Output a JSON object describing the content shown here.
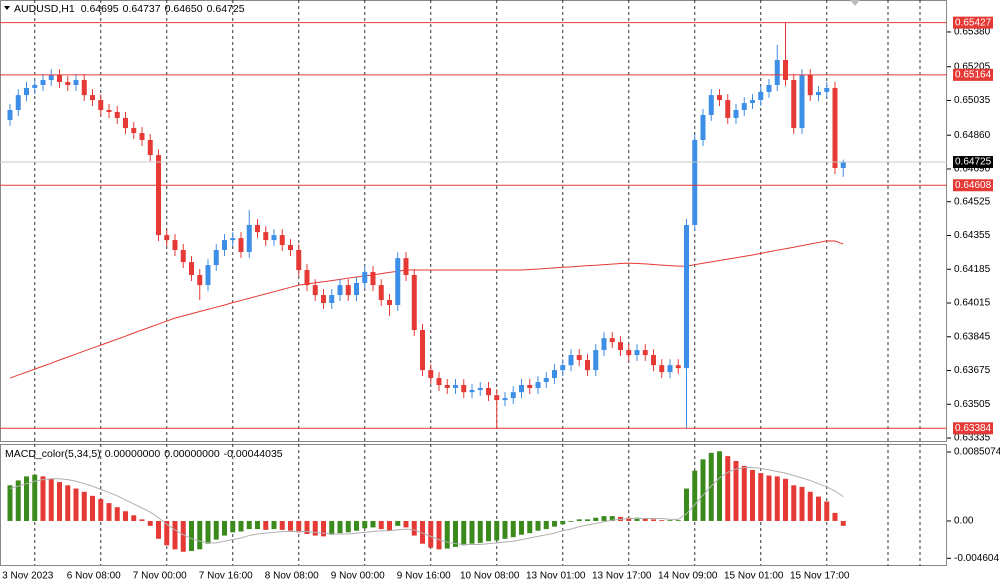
{
  "chart_data": {
    "type": "candlestick",
    "symbol": "AUDUSD,H1",
    "header_values": [
      "0.64695",
      "0.64737",
      "0.64650",
      "0.64725"
    ],
    "bull_color": "#3d8ee6",
    "bear_color": "#e53935",
    "ma_color": "#e53935",
    "level_color": "#e53935",
    "open": [
      0.64937,
      0.64987,
      0.65062,
      0.65098,
      0.65113,
      0.65138,
      0.65163,
      0.65128,
      0.65113,
      0.65138,
      0.65062,
      0.65037,
      0.64987,
      0.64977,
      0.64947,
      0.64896,
      0.64871,
      0.64836,
      0.6476,
      0.64357,
      0.64332,
      0.64282,
      0.64221,
      0.64156,
      0.64105,
      0.64206,
      0.64282,
      0.64332,
      0.64342,
      0.64272,
      0.64408,
      0.64372,
      0.64332,
      0.64357,
      0.64307,
      0.64282,
      0.64181,
      0.64105,
      0.64055,
      0.64015,
      0.64055,
      0.64105,
      0.64055,
      0.64116,
      0.64171,
      0.64105,
      0.6403,
      0.64005,
      0.64241,
      0.64156,
      0.63879,
      0.63677,
      0.63637,
      0.63602,
      0.63587,
      0.63602,
      0.63566,
      0.63577,
      0.63587,
      0.63551,
      0.63526,
      0.63536,
      0.63566,
      0.63602,
      0.63587,
      0.63617,
      0.63637,
      0.63677,
      0.63702,
      0.63753,
      0.63728,
      0.63677,
      0.63778,
      0.63838,
      0.63818,
      0.63778,
      0.63753,
      0.63778,
      0.63753,
      0.63702,
      0.63667,
      0.63702,
      0.63687,
      0.64408,
      0.64836,
      0.64962,
      0.65062,
      0.65037,
      0.64947,
      0.64987,
      0.65022,
      0.65037,
      0.65078,
      0.65113,
      0.65239,
      0.65138,
      0.64896,
      0.65163,
      0.65062,
      0.65078,
      0.65098,
      0.64695
    ],
    "high": [
      0.65017,
      0.65092,
      0.65128,
      0.65143,
      0.65168,
      0.65193,
      0.65193,
      0.65158,
      0.65168,
      0.65168,
      0.65092,
      0.65067,
      0.65017,
      0.65007,
      0.64977,
      0.64926,
      0.64901,
      0.64866,
      0.6479,
      0.64387,
      0.64362,
      0.64312,
      0.64251,
      0.64186,
      0.64236,
      0.64312,
      0.64362,
      0.64372,
      0.64372,
      0.64483,
      0.64438,
      0.64402,
      0.64387,
      0.64387,
      0.64337,
      0.64312,
      0.64211,
      0.64135,
      0.64085,
      0.64085,
      0.64135,
      0.64135,
      0.64146,
      0.64201,
      0.64201,
      0.64135,
      0.6406,
      0.64271,
      0.64271,
      0.64186,
      0.63909,
      0.63707,
      0.63667,
      0.63632,
      0.63632,
      0.63632,
      0.63607,
      0.63617,
      0.63617,
      0.63581,
      0.63566,
      0.63596,
      0.63632,
      0.63632,
      0.63647,
      0.63667,
      0.63707,
      0.63732,
      0.63783,
      0.63783,
      0.63758,
      0.63808,
      0.63868,
      0.63868,
      0.63848,
      0.63808,
      0.63808,
      0.63808,
      0.63783,
      0.63732,
      0.63732,
      0.63732,
      0.64438,
      0.64866,
      0.64992,
      0.65092,
      0.65092,
      0.65067,
      0.65017,
      0.65052,
      0.65067,
      0.65108,
      0.65143,
      0.65315,
      0.65427,
      0.65168,
      0.65193,
      0.65193,
      0.65108,
      0.65128,
      0.65128,
      0.64737
    ],
    "low": [
      0.64907,
      0.64957,
      0.65032,
      0.65068,
      0.65083,
      0.65108,
      0.65098,
      0.65083,
      0.65083,
      0.65032,
      0.65007,
      0.64957,
      0.64947,
      0.64917,
      0.64866,
      0.64841,
      0.64806,
      0.6473,
      0.64327,
      0.64302,
      0.64252,
      0.64191,
      0.64126,
      0.6403,
      0.64075,
      0.64176,
      0.64252,
      0.64302,
      0.64242,
      0.64242,
      0.64342,
      0.64302,
      0.64302,
      0.64277,
      0.64252,
      0.64151,
      0.64075,
      0.64025,
      0.63985,
      0.63985,
      0.64025,
      0.64025,
      0.64025,
      0.64086,
      0.64075,
      0.64,
      0.6395,
      0.63975,
      0.64126,
      0.63849,
      0.63647,
      0.63607,
      0.63572,
      0.63557,
      0.63557,
      0.63536,
      0.63536,
      0.63547,
      0.63521,
      0.63385,
      0.63496,
      0.63506,
      0.63536,
      0.63557,
      0.63557,
      0.63587,
      0.63607,
      0.63647,
      0.63672,
      0.63698,
      0.63647,
      0.63647,
      0.63748,
      0.63788,
      0.63748,
      0.63723,
      0.63723,
      0.63723,
      0.63672,
      0.63637,
      0.63637,
      0.63657,
      0.63385,
      0.64378,
      0.64806,
      0.64932,
      0.65007,
      0.64917,
      0.64917,
      0.64957,
      0.64992,
      0.65007,
      0.65048,
      0.65083,
      0.65108,
      0.64866,
      0.64866,
      0.65032,
      0.65032,
      0.65048,
      0.64665,
      0.6465
    ],
    "close": [
      0.64987,
      0.65062,
      0.65098,
      0.65113,
      0.65138,
      0.65163,
      0.65128,
      0.65113,
      0.65138,
      0.65062,
      0.65037,
      0.64987,
      0.64977,
      0.64947,
      0.64896,
      0.64871,
      0.64836,
      0.6476,
      0.64357,
      0.64332,
      0.64282,
      0.64221,
      0.64156,
      0.64105,
      0.64206,
      0.64282,
      0.64332,
      0.64342,
      0.64272,
      0.64408,
      0.64372,
      0.64332,
      0.64357,
      0.64307,
      0.64282,
      0.64181,
      0.64105,
      0.64055,
      0.64015,
      0.64055,
      0.64105,
      0.64055,
      0.64116,
      0.64171,
      0.64105,
      0.6403,
      0.64005,
      0.64241,
      0.64156,
      0.63879,
      0.63677,
      0.63637,
      0.63602,
      0.63587,
      0.63602,
      0.63566,
      0.63577,
      0.63587,
      0.63551,
      0.63526,
      0.63536,
      0.63566,
      0.63602,
      0.63587,
      0.63617,
      0.63637,
      0.63677,
      0.63702,
      0.63753,
      0.63728,
      0.63677,
      0.63778,
      0.63838,
      0.63818,
      0.63778,
      0.63753,
      0.63778,
      0.63753,
      0.63702,
      0.63667,
      0.63702,
      0.63687,
      0.64408,
      0.64836,
      0.64962,
      0.65062,
      0.65037,
      0.64947,
      0.64987,
      0.65022,
      0.65037,
      0.65078,
      0.65113,
      0.65239,
      0.65138,
      0.64896,
      0.65163,
      0.65062,
      0.65078,
      0.65098,
      0.64695,
      0.64725
    ],
    "ma": [
      0.63637,
      0.63652,
      0.63667,
      0.63682,
      0.63697,
      0.63712,
      0.63728,
      0.63743,
      0.63758,
      0.63773,
      0.63788,
      0.63803,
      0.63818,
      0.63833,
      0.63848,
      0.63864,
      0.63879,
      0.63894,
      0.63909,
      0.63924,
      0.63939,
      0.6395,
      0.63961,
      0.63972,
      0.63983,
      0.63994,
      0.64005,
      0.64017,
      0.64028,
      0.64039,
      0.6405,
      0.64061,
      0.64072,
      0.64083,
      0.64094,
      0.64105,
      0.64111,
      0.64117,
      0.64122,
      0.64128,
      0.64134,
      0.6414,
      0.64146,
      0.64151,
      0.64157,
      0.64163,
      0.64169,
      0.64175,
      0.64181,
      0.64181,
      0.64181,
      0.64181,
      0.64181,
      0.64181,
      0.64181,
      0.64181,
      0.64181,
      0.64181,
      0.64181,
      0.64181,
      0.64181,
      0.64181,
      0.64181,
      0.64184,
      0.64186,
      0.64189,
      0.64192,
      0.64195,
      0.64197,
      0.642,
      0.64203,
      0.64205,
      0.64208,
      0.64211,
      0.64214,
      0.64216,
      0.64214,
      0.64212,
      0.64209,
      0.64206,
      0.64203,
      0.64201,
      0.64201,
      0.64208,
      0.64215,
      0.64222,
      0.64229,
      0.64236,
      0.64243,
      0.6425,
      0.64257,
      0.64265,
      0.64273,
      0.64281,
      0.64288,
      0.64296,
      0.64304,
      0.64312,
      0.6432,
      0.64328,
      0.64327,
      0.64312
    ],
    "ylim": [
      0.63315,
      0.65541
    ],
    "yticks": [
      {
        "value": 0.6538,
        "label": "0.65380"
      },
      0.65205,
      0.65035,
      {
        "value": 0.6486,
        "label": "0.64860"
      },
      {
        "value": 0.6469,
        "label": "0.64690"
      },
      0.64525,
      0.64355,
      0.64185,
      0.64015,
      0.63845,
      0.63675,
      0.63505,
      0.63335
    ],
    "levels": [
      0.65427,
      0.65164,
      0.64608,
      0.63384
    ],
    "last_price": 0.64725,
    "xlabels": [
      "3 Nov 2023",
      "6 Nov 08:00",
      "7 Nov 00:00",
      "7 Nov 16:00",
      "8 Nov 08:00",
      "9 Nov 00:00",
      "9 Nov 16:00",
      "10 Nov 08:00",
      "13 Nov 01:00",
      "13 Nov 17:00",
      "14 Nov 09:00",
      "15 Nov 01:00",
      "15 Nov 17:00"
    ],
    "indicator": {
      "name": "MACD_color(5,34,5)",
      "header_values": [
        "0.00000000",
        "0.00000000",
        "-0.00044035"
      ],
      "up_color": "#3a8a1c",
      "down_color": "#e53935",
      "signal_color": "#b0b0b0",
      "values": [
        0.0044,
        0.005,
        0.0055,
        0.0057,
        0.0055,
        0.0052,
        0.0048,
        0.0044,
        0.004,
        0.0036,
        0.0031,
        0.0027,
        0.0022,
        0.0017,
        0.0012,
        0.0007,
        0.0002,
        -0.0006,
        -0.0022,
        -0.003,
        -0.0035,
        -0.0038,
        -0.0037,
        -0.0035,
        -0.0028,
        -0.0023,
        -0.0018,
        -0.0014,
        -0.0013,
        -0.001,
        -0.001,
        -0.0011,
        -0.001,
        -0.0011,
        -0.0012,
        -0.0014,
        -0.0016,
        -0.0018,
        -0.0019,
        -0.0017,
        -0.0015,
        -0.0014,
        -0.0012,
        -0.0009,
        -0.0008,
        -0.001,
        -0.0012,
        -0.0006,
        -0.0008,
        -0.0018,
        -0.0028,
        -0.0033,
        -0.0035,
        -0.0034,
        -0.0032,
        -0.003,
        -0.0028,
        -0.0027,
        -0.0025,
        -0.0024,
        -0.0022,
        -0.002,
        -0.0017,
        -0.0015,
        -0.0012,
        -0.001,
        -0.0007,
        -0.0004,
        -0.0001,
        0.0002,
        0.0002,
        0.0004,
        0.0006,
        0.0006,
        0.0005,
        0.0004,
        0.0004,
        0.0003,
        0.0002,
        0.0001,
        0.0001,
        0.0001,
        0.004,
        0.0062,
        0.0076,
        0.0084,
        0.0086,
        0.008,
        0.0074,
        0.0068,
        0.0063,
        0.0059,
        0.0056,
        0.0055,
        0.0052,
        0.0044,
        0.0042,
        0.0036,
        0.003,
        0.0024,
        0.001,
        -0.0006
      ],
      "signal": [
        0.004,
        0.0043,
        0.0046,
        0.0049,
        0.0051,
        0.0052,
        0.0052,
        0.0051,
        0.0049,
        0.0046,
        0.0043,
        0.0039,
        0.0035,
        0.0031,
        0.0026,
        0.0021,
        0.0016,
        0.0011,
        0.0004,
        -0.0004,
        -0.0011,
        -0.0017,
        -0.0022,
        -0.0025,
        -0.0027,
        -0.0027,
        -0.0025,
        -0.0023,
        -0.0021,
        -0.0018,
        -0.0016,
        -0.0015,
        -0.0014,
        -0.0013,
        -0.0013,
        -0.0013,
        -0.0013,
        -0.0014,
        -0.0015,
        -0.0016,
        -0.0016,
        -0.0016,
        -0.0015,
        -0.0014,
        -0.0013,
        -0.0012,
        -0.0012,
        -0.0011,
        -0.001,
        -0.0011,
        -0.0015,
        -0.0019,
        -0.0023,
        -0.0026,
        -0.0028,
        -0.0029,
        -0.0029,
        -0.0029,
        -0.0028,
        -0.0027,
        -0.0026,
        -0.0025,
        -0.0023,
        -0.0021,
        -0.0019,
        -0.0017,
        -0.0015,
        -0.0012,
        -0.001,
        -0.0007,
        -0.0005,
        -0.0003,
        -0.0001,
        0.0001,
        0.0002,
        0.0003,
        0.0003,
        0.0003,
        0.0003,
        0.0003,
        0.0002,
        0.0002,
        0.0009,
        0.002,
        0.0032,
        0.0043,
        0.0053,
        0.006,
        0.0064,
        0.0066,
        0.0066,
        0.0065,
        0.0063,
        0.0061,
        0.0059,
        0.0056,
        0.0053,
        0.005,
        0.0046,
        0.0042,
        0.0037,
        0.003
      ],
      "ylim": [
        -0.00543,
        0.00937
      ],
      "yticks": [
        0.0085074,
        {
          "value": 0,
          "label": "0.00"
        },
        -0.004604
      ]
    }
  }
}
